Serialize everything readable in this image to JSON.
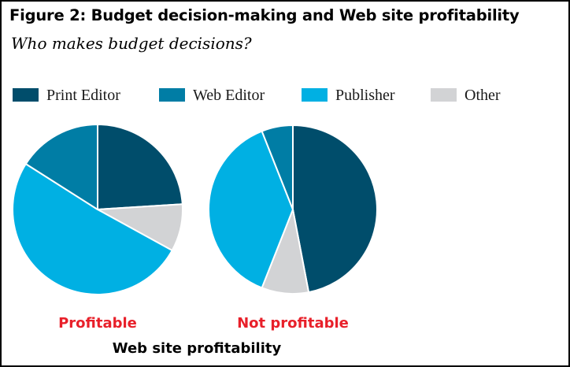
{
  "chart_data": {
    "type": "pie",
    "title": "Figure 2: Budget decision-making and Web site profitability",
    "subtitle": "Who makes budget decisions?",
    "xlabel": "Web site profitability",
    "legend_position": "top",
    "legend": [
      {
        "name": "Print Editor",
        "color": "#004d6b"
      },
      {
        "name": "Web Editor",
        "color": "#007da5"
      },
      {
        "name": "Publisher",
        "color": "#00b0e3"
      },
      {
        "name": "Other",
        "color": "#d2d3d5"
      }
    ],
    "categories": [
      "Profitable",
      "Not profitable"
    ],
    "series": [
      {
        "name": "Print Editor",
        "values": [
          24,
          47
        ]
      },
      {
        "name": "Web Editor",
        "values": [
          16,
          6
        ]
      },
      {
        "name": "Publisher",
        "values": [
          51,
          38
        ]
      },
      {
        "name": "Other",
        "values": [
          9,
          9
        ]
      }
    ],
    "pie_order": [
      "Print Editor",
      "Other",
      "Publisher",
      "Web Editor"
    ]
  }
}
